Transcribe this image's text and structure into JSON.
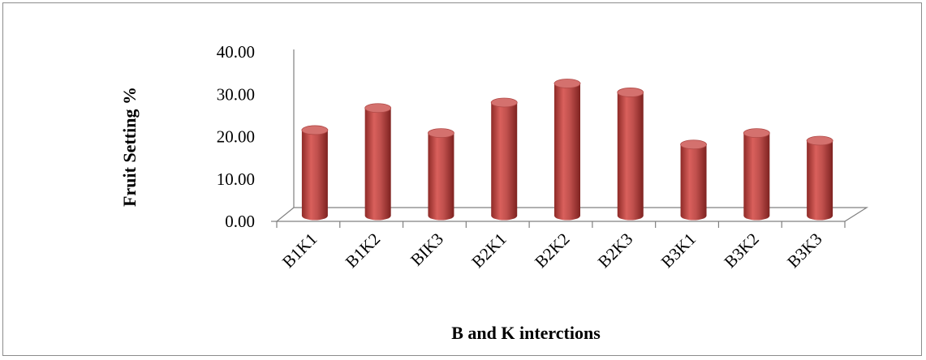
{
  "chart_data": {
    "type": "bar",
    "style": "3d-cylinder",
    "categories": [
      "B1K1",
      "B1K2",
      "BIK3",
      "B2K1",
      "B2K2",
      "B2K3",
      "B3K1",
      "B3K2",
      "B3K3"
    ],
    "values": [
      20.2,
      25.4,
      19.5,
      26.7,
      31.2,
      29.1,
      16.8,
      19.5,
      17.7
    ],
    "xlabel": "B and K interctions",
    "ylabel": "Fruit Setting %",
    "ylim": [
      0,
      40
    ],
    "yticks": [
      "0.00",
      "10.00",
      "20.00",
      "30.00",
      "40.00"
    ],
    "grid": false,
    "legend": false,
    "colors": {
      "bar_body": "#c0504d",
      "bar_dark": "#8e2a27",
      "bar_top": "#d4716e"
    }
  }
}
